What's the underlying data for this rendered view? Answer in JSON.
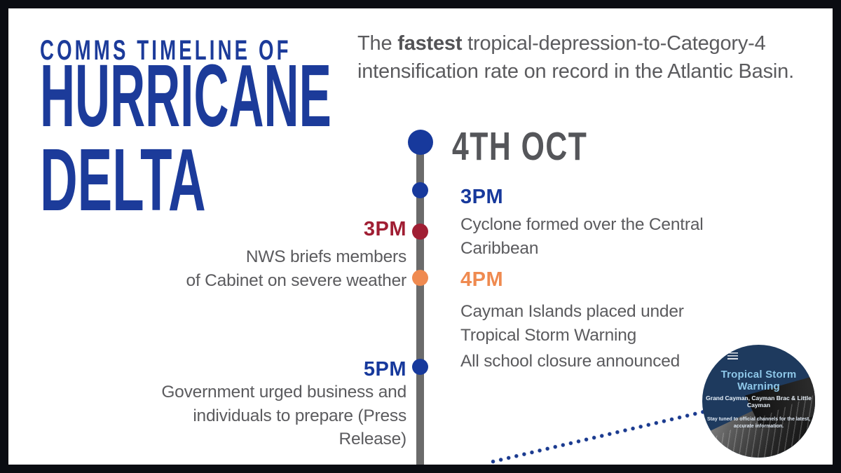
{
  "header": {
    "kicker": "COMMS TIMELINE OF",
    "title_line1": "HURRICANE",
    "title_line2": "DELTA",
    "subtitle_pre": "The ",
    "subtitle_bold": "fastest",
    "subtitle_post": " tropical-depression-to-Category-4 intensification rate on record in the Atlantic Basin."
  },
  "timeline": {
    "date_header": "4TH OCT",
    "events": [
      {
        "time": "3PM",
        "side": "right",
        "accent": "navy",
        "text": "Cyclone formed over the Central\nCaribbean"
      },
      {
        "time": "3PM",
        "side": "left",
        "accent": "crimson",
        "text": "NWS briefs members\nof Cabinet on severe weather"
      },
      {
        "time": "4PM",
        "side": "right",
        "accent": "orange",
        "text": "Cayman Islands placed under\nTropical Storm Warning",
        "text2": "All school closure announced"
      },
      {
        "time": "5PM",
        "side": "left",
        "accent": "navy",
        "text": "Government urged business and\nindividuals to prepare (Press\nRelease)"
      }
    ]
  },
  "storm_badge": {
    "title": "Tropical Storm Warning",
    "subtitle": "Grand Cayman, Cayman Brac & Little Cayman",
    "note": "Stay tuned to official channels for the latest,\naccurate information."
  },
  "colors": {
    "navy": "#17399c",
    "title_navy": "#1c3b9a",
    "crimson": "#a01e33",
    "orange": "#ef8a50",
    "body_gray": "#5b5b5e",
    "heading_gray": "#55565a",
    "timeline_bar_gray": "#6b6b6b",
    "frame_border": "#0a0c12",
    "badge_navy": "#1e3a5e",
    "badge_title_blue": "#8ec7e8"
  }
}
